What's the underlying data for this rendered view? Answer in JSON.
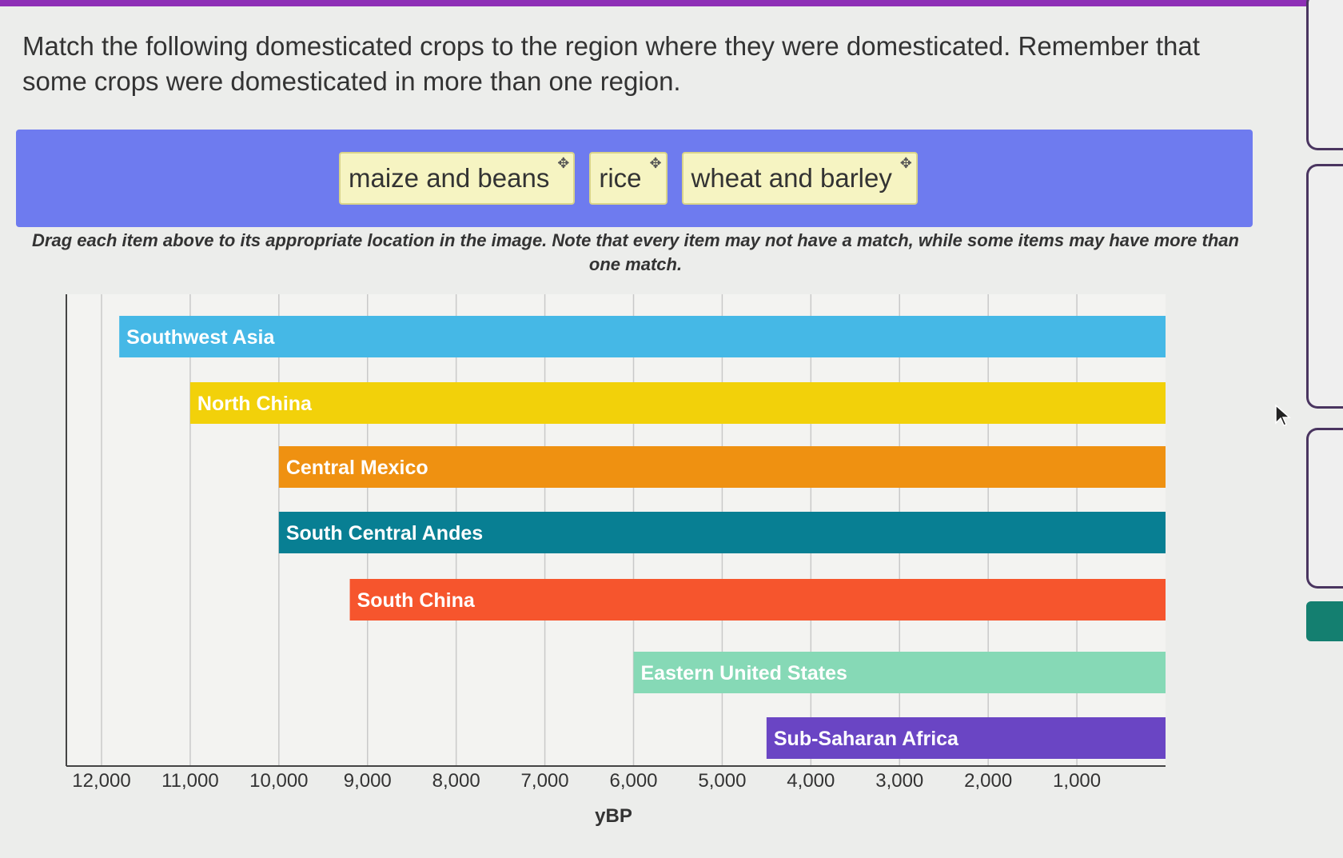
{
  "question": "Match the following domesticated crops to the region where they were domesticated. Remember that some crops were domesticated in more than one region.",
  "drag_items": [
    "maize and beans",
    "rice",
    "wheat and barley"
  ],
  "drag_icon": "move-icon",
  "instructions": "Drag each item above to its appropriate location in the image. Note that every item may not have a match, while some items may have more than one match.",
  "colors": {
    "banner": "#6e7bef",
    "tile": "#f6f4c2",
    "top_bar": "#8e2fb6"
  },
  "chart_data": {
    "type": "bar",
    "orientation": "horizontal-range",
    "xlabel": "yBP",
    "xlim": [
      12000,
      0
    ],
    "x_ticks": [
      "12,000",
      "11,000",
      "10,000",
      "9,000",
      "8,000",
      "7,000",
      "6,000",
      "5,000",
      "4,000",
      "3,000",
      "2,000",
      "1,000"
    ],
    "grid": true,
    "series": [
      {
        "name": "Southwest Asia",
        "start": 11800,
        "end": 0,
        "color": "#45b8e6"
      },
      {
        "name": "North China",
        "start": 11000,
        "end": 0,
        "color": "#f2d10a"
      },
      {
        "name": "Central Mexico",
        "start": 10000,
        "end": 0,
        "color": "#ef9111"
      },
      {
        "name": "South Central Andes",
        "start": 10000,
        "end": 0,
        "color": "#087f93"
      },
      {
        "name": "South China",
        "start": 9200,
        "end": 0,
        "color": "#f6552d"
      },
      {
        "name": "Eastern United States",
        "start": 6000,
        "end": 0,
        "color": "#86d9b6"
      },
      {
        "name": "Sub-Saharan Africa",
        "start": 4500,
        "end": 0,
        "color": "#6a45c4"
      }
    ]
  }
}
